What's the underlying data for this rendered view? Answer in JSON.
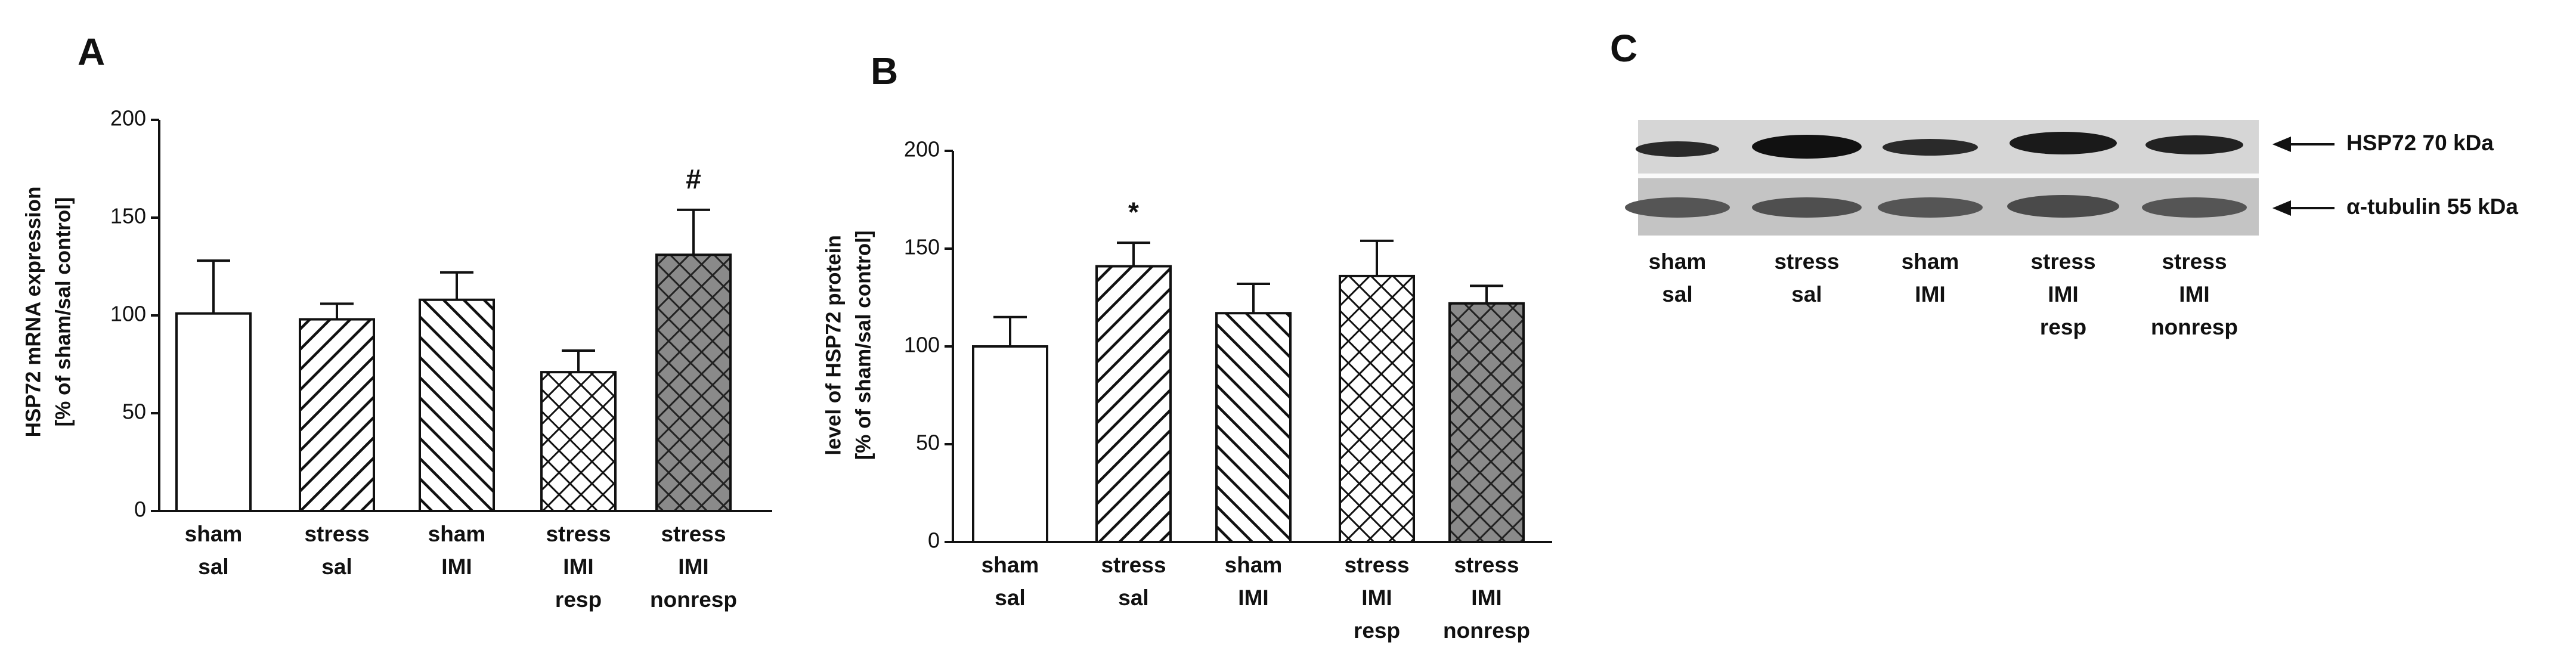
{
  "chart_data": [
    {
      "type": "bar",
      "panel": "A",
      "ylabel": [
        "HSP72 mRNA expression",
        "[% of sham/sal control]"
      ],
      "categories": [
        [
          "sham",
          "sal"
        ],
        [
          "stress",
          "sal"
        ],
        [
          "sham",
          "IMI"
        ],
        [
          "stress",
          "IMI",
          "resp"
        ],
        [
          "stress",
          "IMI",
          "nonresp"
        ]
      ],
      "values": [
        101,
        98,
        108,
        71,
        131
      ],
      "errors": [
        27,
        8,
        14,
        11,
        23
      ],
      "value_annotations": [
        null,
        null,
        null,
        null,
        "#"
      ],
      "patterns": [
        "open",
        "hatch-up",
        "hatch-down",
        "crosshatch",
        "crosshatch-dark"
      ],
      "ylim": [
        0,
        200
      ],
      "yticks": [
        0,
        50,
        100,
        150,
        200
      ]
    },
    {
      "type": "bar",
      "panel": "B",
      "ylabel": [
        "level of HSP72 protein",
        "[% of sham/sal control]"
      ],
      "categories": [
        [
          "sham",
          "sal"
        ],
        [
          "stress",
          "sal"
        ],
        [
          "sham",
          "IMI"
        ],
        [
          "stress",
          "IMI",
          "resp"
        ],
        [
          "stress",
          "IMI",
          "nonresp"
        ]
      ],
      "values": [
        100,
        141,
        117,
        136,
        122
      ],
      "errors": [
        15,
        12,
        15,
        18,
        9
      ],
      "value_annotations": [
        null,
        "*",
        null,
        null,
        null
      ],
      "patterns": [
        "open",
        "hatch-up",
        "hatch-down",
        "crosshatch",
        "crosshatch-dark"
      ],
      "ylim": [
        0,
        200
      ],
      "yticks": [
        0,
        50,
        100,
        150,
        200
      ]
    }
  ],
  "blot": {
    "panel": "C",
    "bands": [
      "HSP72 70 kDa",
      "α-tubulin 55 kDa"
    ],
    "lanes": [
      [
        "sham",
        "sal"
      ],
      [
        "stress",
        "sal"
      ],
      [
        "sham",
        "IMI"
      ],
      [
        "stress",
        "IMI",
        "resp"
      ],
      [
        "stress",
        "IMI",
        "nonresp"
      ]
    ]
  }
}
